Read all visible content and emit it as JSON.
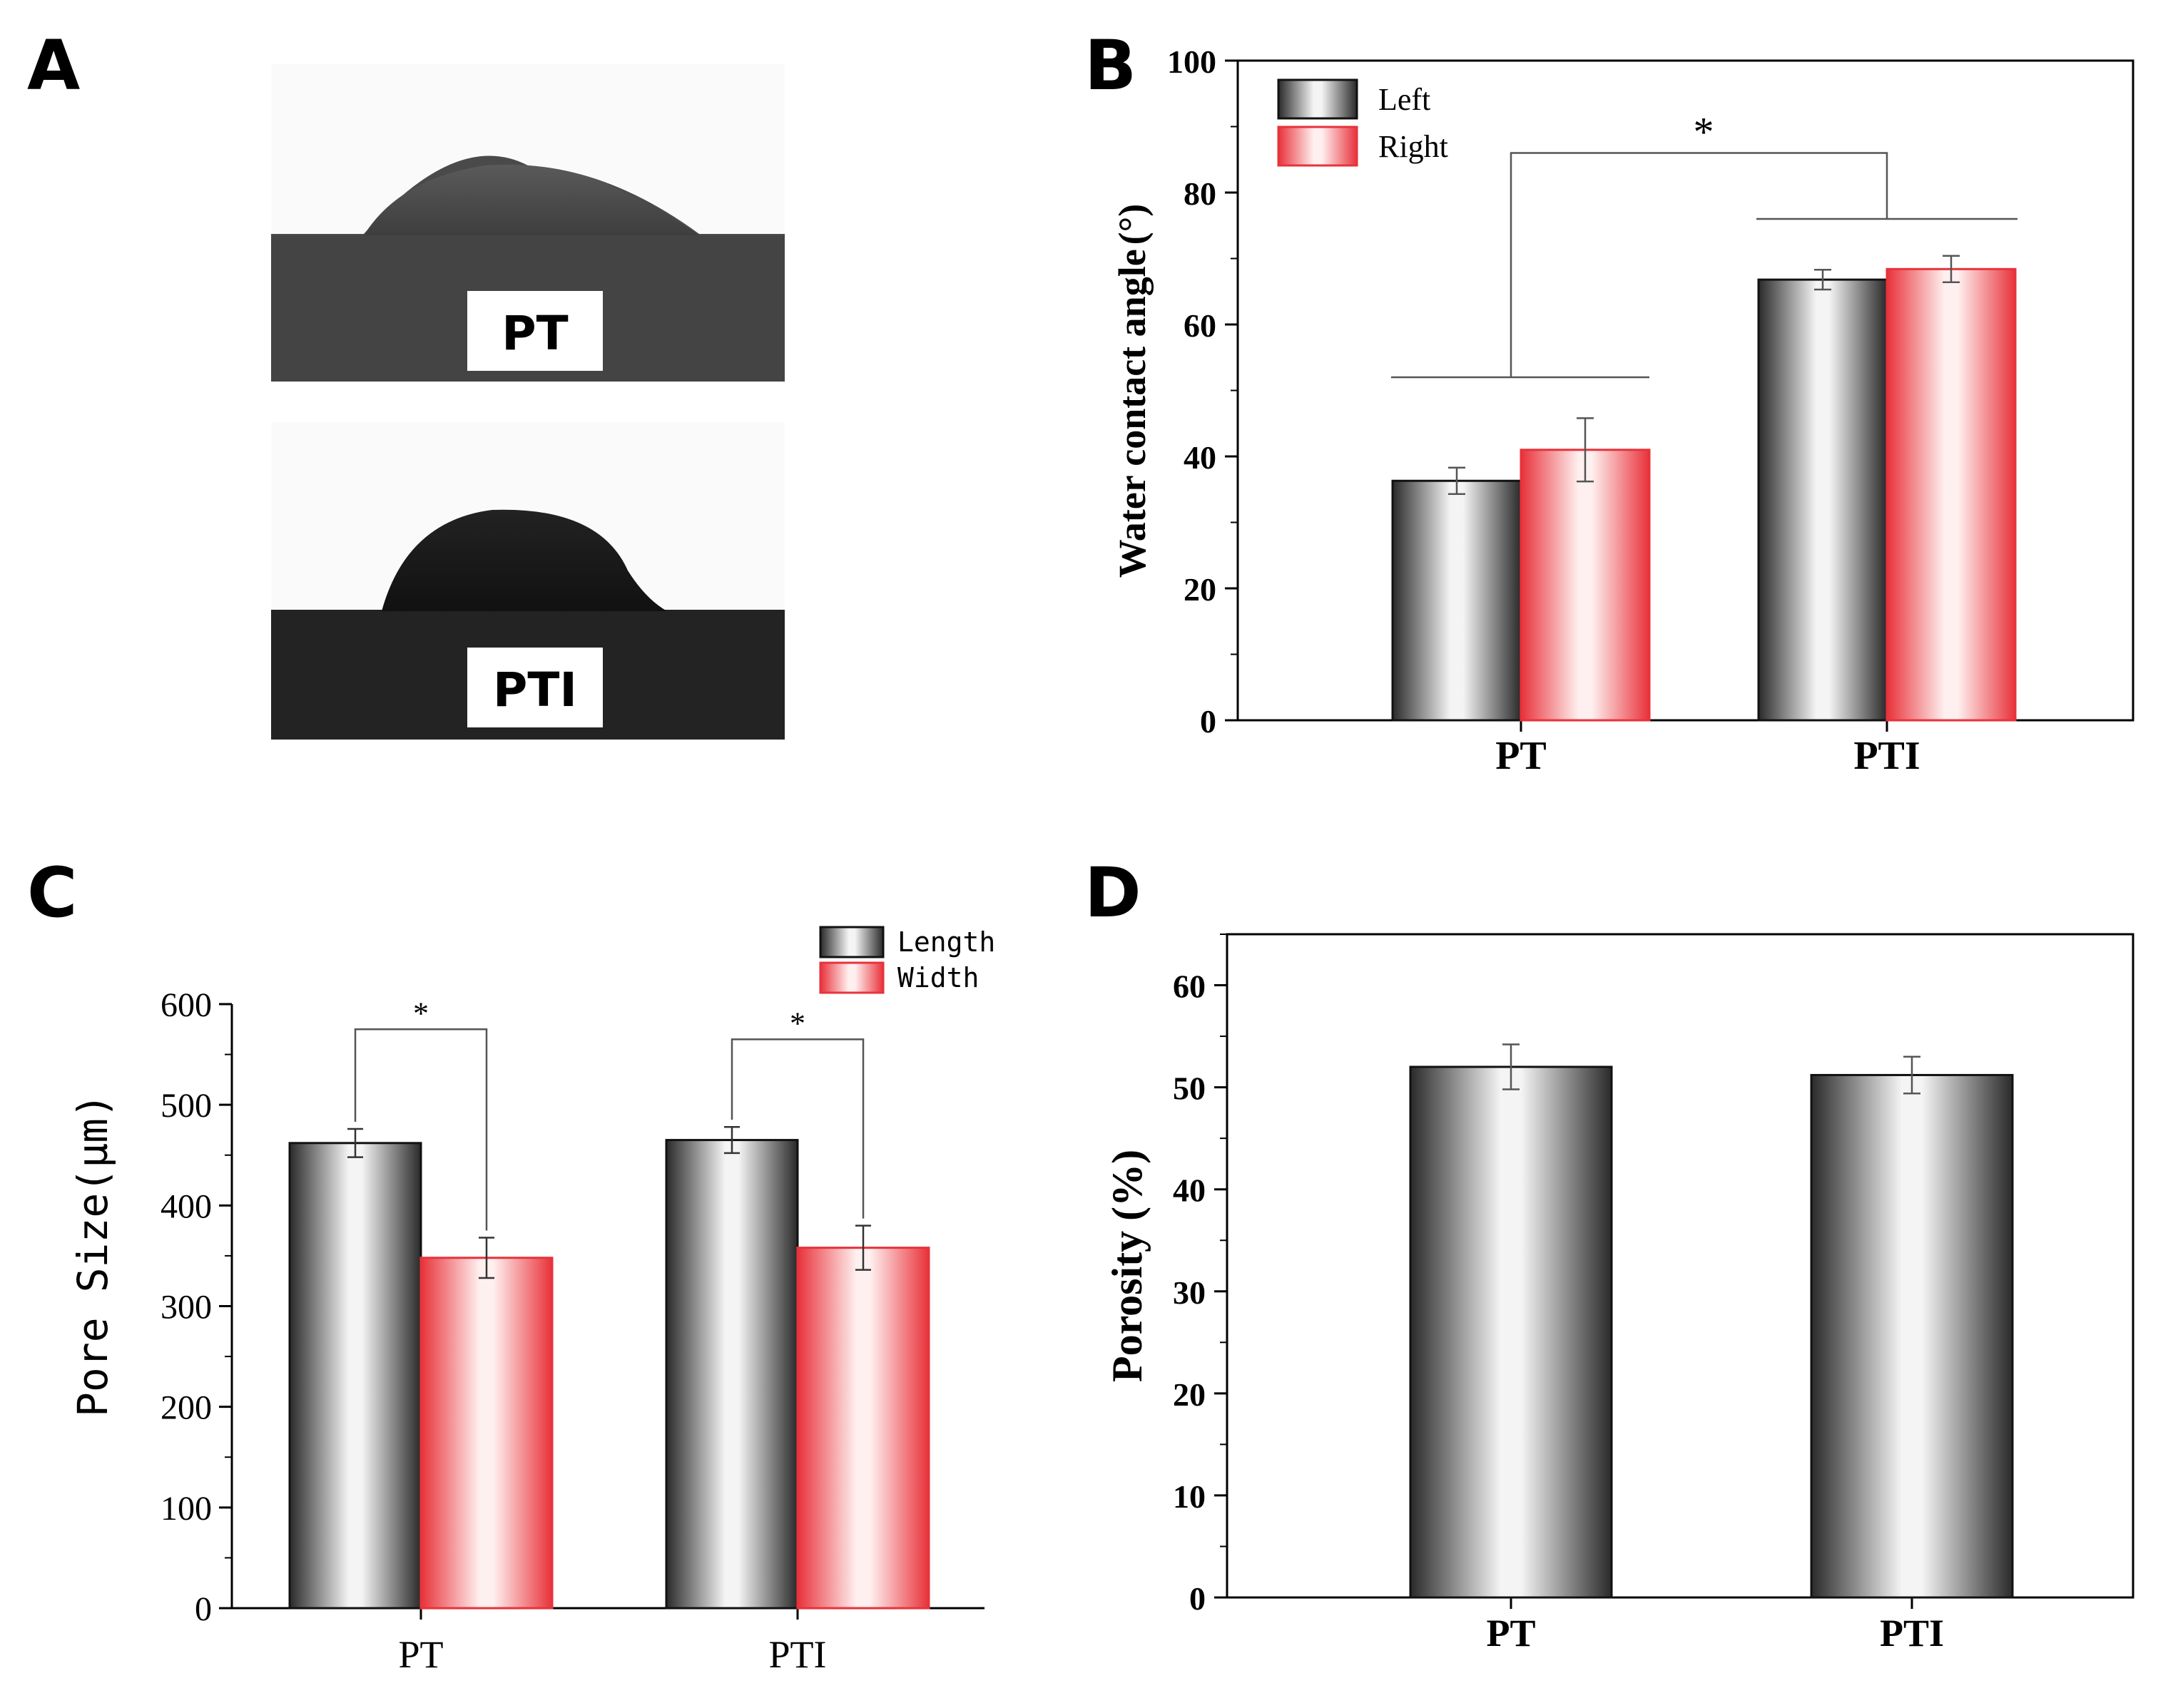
{
  "figure": {
    "panels": [
      "A",
      "B",
      "C",
      "D"
    ],
    "photos": [
      {
        "label": "PT"
      },
      {
        "label": "PTI"
      }
    ]
  },
  "colors": {
    "gray_dark": "#2a2a2a",
    "gray_light": "#f4f4f4",
    "red_dark": "#e8323a",
    "red_light": "#fff0f0",
    "axis": "#000000"
  },
  "chart_data": [
    {
      "panel": "B",
      "type": "bar",
      "title": "",
      "xlabel": "",
      "ylabel": "Water contact angle (°)",
      "ylabel_parts": [
        "Water contact angle",
        "(",
        "°",
        ")"
      ],
      "categories": [
        "PT",
        "PTI"
      ],
      "ylim": [
        0,
        100
      ],
      "yticks": [
        "0",
        "20",
        "40",
        "60",
        "80",
        "100"
      ],
      "series": [
        {
          "name": "Left",
          "values": [
            36.3,
            66.8
          ],
          "errors": [
            2.0,
            1.5
          ],
          "style": "gray"
        },
        {
          "name": "Right",
          "values": [
            41.0,
            68.4
          ],
          "errors": [
            4.8,
            2.0
          ],
          "style": "red"
        }
      ],
      "legend": {
        "placement": "top-left",
        "labels": [
          "Left",
          "Right"
        ]
      },
      "annotations": [
        {
          "text": "*",
          "between": [
            "PT",
            "PTI"
          ]
        }
      ],
      "bracket": {
        "pt_level": 52,
        "pti_level": 76,
        "top": 86
      }
    },
    {
      "panel": "C",
      "type": "bar",
      "title": "",
      "xlabel": "",
      "ylabel": "Pore Size(μm)",
      "ylabel_parts": [
        "Pore Size",
        "(",
        "μm",
        ")"
      ],
      "categories": [
        "PT",
        "PTI"
      ],
      "ylim": [
        0,
        600
      ],
      "yticks": [
        "0",
        "100",
        "200",
        "300",
        "400",
        "500",
        "600"
      ],
      "series": [
        {
          "name": "Length",
          "values": [
            462,
            465
          ],
          "errors": [
            14,
            13
          ],
          "style": "gray"
        },
        {
          "name": "Width",
          "values": [
            348,
            358
          ],
          "errors": [
            20,
            22
          ],
          "style": "red"
        }
      ],
      "legend": {
        "placement": "top-right",
        "labels": [
          "Length",
          "Width"
        ]
      },
      "annotations": [
        {
          "text": "*",
          "category": "PT"
        },
        {
          "text": "*",
          "category": "PTI"
        }
      ],
      "bracket_top": [
        575,
        565
      ]
    },
    {
      "panel": "D",
      "type": "bar",
      "title": "",
      "xlabel": "",
      "ylabel": "Porosity (%)",
      "ylabel_parts": [
        "Porosity",
        "(",
        "%",
        ")"
      ],
      "categories": [
        "PT",
        "PTI"
      ],
      "ylim": [
        0,
        65
      ],
      "yticks": [
        "0",
        "10",
        "20",
        "30",
        "40",
        "50",
        "60"
      ],
      "series": [
        {
          "name": "Porosity",
          "values": [
            52.0,
            51.2
          ],
          "errors": [
            2.2,
            1.8
          ],
          "style": "gray"
        }
      ]
    }
  ]
}
